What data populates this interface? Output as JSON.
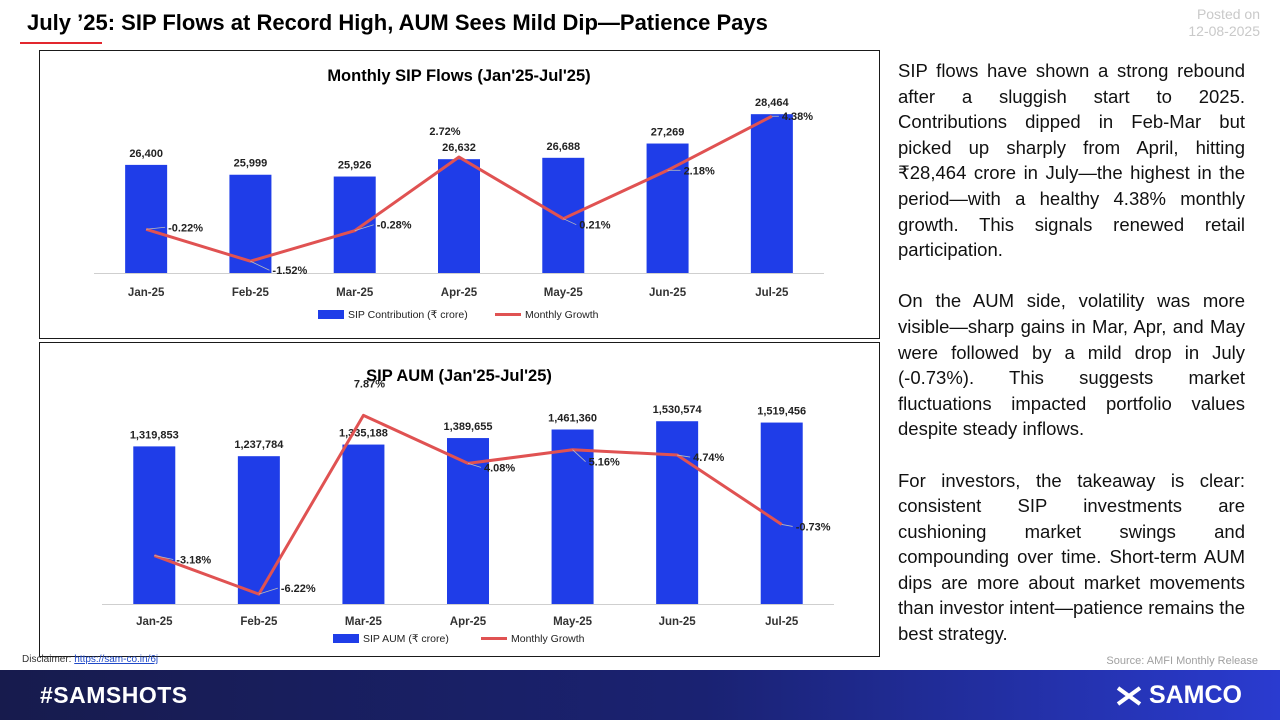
{
  "header": {
    "title": "July ’25: SIP Flows at Record High, AUM Sees Mild Dip—Patience Pays",
    "posted_label": "Posted on",
    "posted_date": "12-08-2025"
  },
  "chart_data": [
    {
      "type": "bar",
      "title": "Monthly SIP Flows (Jan'25-Jul'25)",
      "categories": [
        "Jan-25",
        "Feb-25",
        "Mar-25",
        "Apr-25",
        "May-25",
        "Jun-25",
        "Jul-25"
      ],
      "series": [
        {
          "name": "SIP Contribution (₹ crore)",
          "type": "bar",
          "values": [
            26400,
            25999,
            25926,
            26632,
            26688,
            27269,
            28464
          ],
          "labels": [
            "26,400",
            "25,999",
            "25,926",
            "26,632",
            "26,688",
            "27,269",
            "28,464"
          ],
          "color": "#1f3de8"
        },
        {
          "name": "Monthly Growth",
          "type": "line",
          "values": [
            -0.22,
            -1.52,
            -0.28,
            2.72,
            0.21,
            2.18,
            4.38
          ],
          "labels": [
            "-0.22%",
            "-1.52%",
            "-0.28%",
            "2.72%",
            "0.21%",
            "2.18%",
            "4.38%"
          ],
          "color": "#e05252"
        }
      ],
      "primary_ylim": [
        22000,
        29000
      ],
      "secondary_ylim": [
        -2,
        5
      ],
      "legend": "bottom",
      "grid": false
    },
    {
      "type": "bar",
      "title": "SIP AUM (Jan'25-Jul'25)",
      "categories": [
        "Jan-25",
        "Feb-25",
        "Mar-25",
        "Apr-25",
        "May-25",
        "Jun-25",
        "Jul-25"
      ],
      "series": [
        {
          "name": "SIP AUM  (₹ crore)",
          "type": "bar",
          "values": [
            1319853,
            1237784,
            1335188,
            1389655,
            1461360,
            1530574,
            1519456
          ],
          "labels": [
            "1,319,853",
            "1,237,784",
            "1,335,188",
            "1,389,655",
            "1,461,360",
            "1,530,574",
            "1,519,456"
          ],
          "color": "#1f3de8"
        },
        {
          "name": "Monthly Growth",
          "type": "line",
          "values": [
            -3.18,
            -6.22,
            7.87,
            4.08,
            5.16,
            4.74,
            -0.73
          ],
          "labels": [
            "-3.18%",
            "-6.22%",
            "7.87%",
            "4.08%",
            "5.16%",
            "4.74%",
            "-0.73%"
          ],
          "color": "#e05252"
        }
      ],
      "primary_ylim": [
        0,
        1700000
      ],
      "secondary_ylim": [
        -7,
        9
      ],
      "legend": "bottom",
      "grid": false
    }
  ],
  "commentary": {
    "p1": "SIP flows have shown a strong rebound after a sluggish start to 2025. Contributions dipped in Feb-Mar but picked up sharply from April, hitting ₹28,464 crore in July—the highest in the period—with a healthy 4.38% monthly growth. This signals renewed retail participation.",
    "p2": "On the AUM side, volatility was more visible—sharp gains in Mar, Apr, and May were followed by a mild drop in July (-0.73%). This suggests market fluctuations impacted portfolio values despite steady inflows.",
    "p3": "For investors, the takeaway is clear: consistent SIP investments are cushioning market swings and compounding over time. Short-term AUM dips are more about market movements than investor intent—patience remains the best strategy."
  },
  "footer": {
    "disclaimer_label": "Disclaimer:",
    "disclaimer_link": "https://sam-co.in/6j",
    "source": "Source: AMFI Monthly Release",
    "hashtag": "#SAMSHOTS",
    "brand": "SAMCO",
    "brand_icon": "samco-logo-icon"
  }
}
